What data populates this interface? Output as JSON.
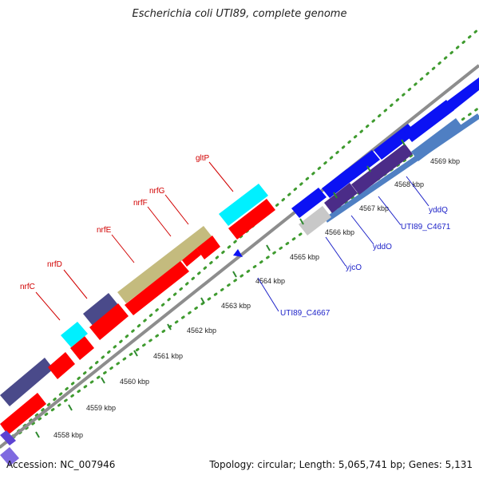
{
  "title": "Escherichia coli UTI89, complete genome",
  "footer": {
    "accession": "Accession: NC_007946",
    "summary": "Topology: circular; Length: 5,065,741 bp; Genes: 5,131"
  },
  "colors": {
    "gray_line": "#8d8d8d",
    "green_dot": "#3f9b2f",
    "tick_green": "#2f8a2f",
    "gene_red": "#ff0000",
    "cds_navy": "#4a4a8a",
    "cyan": "#00f0ff",
    "khaki": "#c4bb7e",
    "blue": "#0b12f4",
    "steel_blue": "#4f7fc3",
    "dark_purple": "#4b2c88",
    "light_gray": "#c8c8c8",
    "label_red": "#d10000",
    "label_blue": "#1d22c8",
    "scale_text": "#1f1f1f"
  },
  "scale_labels": [
    "4558 kbp",
    "4559 kbp",
    "4560 kbp",
    "4561 kbp",
    "4562 kbp",
    "4563 kbp",
    "4564 kbp",
    "4565 kbp",
    "4566 kbp",
    "4567 kbp",
    "4568 kbp",
    "4569 kbp"
  ],
  "feature_labels": {
    "red": [
      "nrfC",
      "nrfD",
      "nrfE",
      "nrfF",
      "nrfG",
      "gltP"
    ],
    "blue": [
      "UTI89_C4667",
      "yjcO",
      "yddO",
      "UTI89_C4671",
      "yddQ"
    ]
  }
}
